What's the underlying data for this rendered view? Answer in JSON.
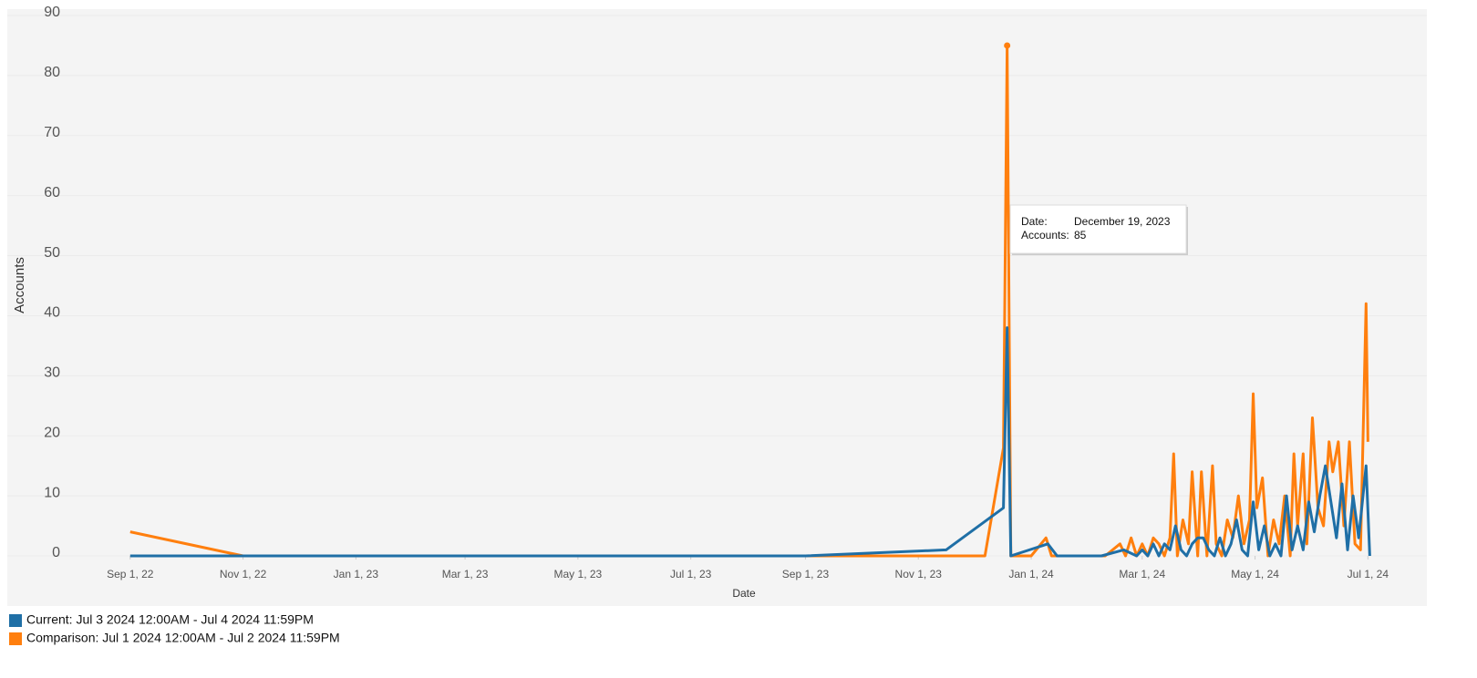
{
  "chart_data": {
    "type": "line",
    "x_label": "Date",
    "y_label": "Accounts",
    "ylim": [
      0,
      90
    ],
    "yticks": [
      0,
      10,
      20,
      30,
      40,
      50,
      60,
      70,
      80,
      90
    ],
    "xlim": [
      "2022-08-05",
      "2024-07-23"
    ],
    "xticks": [
      {
        "value": "2022-09-01",
        "label": "Sep 1, 22"
      },
      {
        "value": "2022-11-01",
        "label": "Nov 1, 22"
      },
      {
        "value": "2023-01-01",
        "label": "Jan 1, 23"
      },
      {
        "value": "2023-03-01",
        "label": "Mar 1, 23"
      },
      {
        "value": "2023-05-01",
        "label": "May 1, 23"
      },
      {
        "value": "2023-07-01",
        "label": "Jul 1, 23"
      },
      {
        "value": "2023-09-01",
        "label": "Sep 1, 23"
      },
      {
        "value": "2023-11-01",
        "label": "Nov 1, 23"
      },
      {
        "value": "2024-01-01",
        "label": "Jan 1, 24"
      },
      {
        "value": "2024-03-01",
        "label": "Mar 1, 24"
      },
      {
        "value": "2024-05-01",
        "label": "May 1, 24"
      },
      {
        "value": "2024-07-01",
        "label": "Jul 1, 24"
      }
    ],
    "grid": true,
    "series": [
      {
        "name": "Current: Jul 3 2024 12:00AM - Jul 4 2024 11:59PM",
        "color": "#1f6fa6",
        "x": [
          "2022-09-01",
          "2023-09-01",
          "2023-11-16",
          "2023-12-17",
          "2023-12-19",
          "2023-12-21",
          "2024-01-10",
          "2024-01-15",
          "2024-02-08",
          "2024-02-20",
          "2024-02-27",
          "2024-03-01",
          "2024-03-04",
          "2024-03-07",
          "2024-03-10",
          "2024-03-13",
          "2024-03-16",
          "2024-03-19",
          "2024-03-22",
          "2024-03-25",
          "2024-03-28",
          "2024-03-31",
          "2024-04-03",
          "2024-04-06",
          "2024-04-09",
          "2024-04-12",
          "2024-04-15",
          "2024-04-18",
          "2024-04-21",
          "2024-04-24",
          "2024-04-27",
          "2024-04-30",
          "2024-05-03",
          "2024-05-06",
          "2024-05-09",
          "2024-05-12",
          "2024-05-15",
          "2024-05-18",
          "2024-05-21",
          "2024-05-24",
          "2024-05-27",
          "2024-05-30",
          "2024-06-02",
          "2024-06-05",
          "2024-06-08",
          "2024-06-11",
          "2024-06-14",
          "2024-06-17",
          "2024-06-20",
          "2024-06-23",
          "2024-06-26",
          "2024-06-30",
          "2024-07-02"
        ],
        "values": [
          0,
          0,
          1,
          8,
          38,
          0,
          2,
          0,
          0,
          1,
          0,
          1,
          0,
          2,
          0,
          2,
          1,
          5,
          1,
          0,
          2,
          3,
          3,
          1,
          0,
          3,
          0,
          2,
          6,
          1,
          0,
          9,
          1,
          5,
          0,
          2,
          0,
          10,
          1,
          5,
          1,
          9,
          4,
          10,
          15,
          9,
          3,
          12,
          1,
          10,
          3,
          15,
          0
        ]
      },
      {
        "name": "Comparison: Jul 1 2024 12:00AM - Jul 2 2024 11:59PM",
        "color": "#ff7f0e",
        "x": [
          "2022-09-01",
          "2022-11-01",
          "2023-12-07",
          "2023-12-17",
          "2023-12-19",
          "2023-12-21",
          "2024-01-01",
          "2024-01-09",
          "2024-01-12",
          "2024-02-10",
          "2024-02-18",
          "2024-02-21",
          "2024-02-24",
          "2024-02-27",
          "2024-03-01",
          "2024-03-04",
          "2024-03-07",
          "2024-03-10",
          "2024-03-13",
          "2024-03-16",
          "2024-03-18",
          "2024-03-20",
          "2024-03-23",
          "2024-03-26",
          "2024-03-28",
          "2024-03-31",
          "2024-04-02",
          "2024-04-05",
          "2024-04-08",
          "2024-04-10",
          "2024-04-13",
          "2024-04-16",
          "2024-04-19",
          "2024-04-22",
          "2024-04-25",
          "2024-04-28",
          "2024-04-30",
          "2024-05-02",
          "2024-05-05",
          "2024-05-08",
          "2024-05-11",
          "2024-05-14",
          "2024-05-17",
          "2024-05-20",
          "2024-05-22",
          "2024-05-24",
          "2024-05-27",
          "2024-05-29",
          "2024-06-01",
          "2024-06-04",
          "2024-06-07",
          "2024-06-10",
          "2024-06-12",
          "2024-06-15",
          "2024-06-18",
          "2024-06-21",
          "2024-06-24",
          "2024-06-27",
          "2024-06-30",
          "2024-07-01"
        ],
        "values": [
          4,
          0,
          0,
          18,
          85,
          0,
          0,
          3,
          0,
          0,
          2,
          0,
          3,
          0,
          2,
          0,
          3,
          2,
          0,
          3,
          17,
          0,
          6,
          2,
          14,
          0,
          14,
          0,
          15,
          2,
          0,
          6,
          3,
          10,
          2,
          6,
          27,
          8,
          13,
          0,
          6,
          2,
          10,
          0,
          17,
          5,
          17,
          2,
          23,
          8,
          5,
          19,
          14,
          19,
          5,
          19,
          2,
          1,
          42,
          19
        ]
      }
    ],
    "tooltip": {
      "date_key": "Date:",
      "date": "December 19, 2023",
      "value_key": "Accounts:",
      "value": 85
    }
  }
}
